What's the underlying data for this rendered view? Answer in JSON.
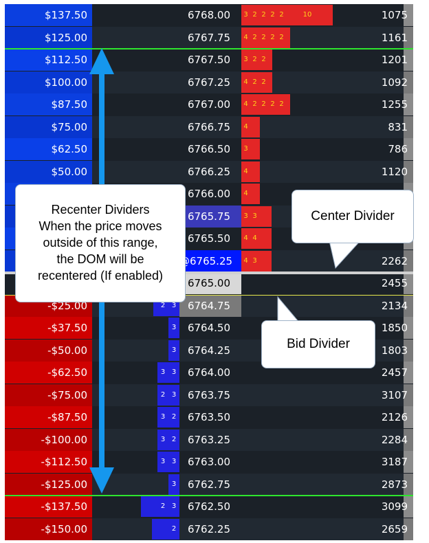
{
  "colors": {
    "pnl_profit": "#0b3fe0",
    "pnl_loss": "#d40000",
    "ask_bar": "#e32626",
    "bid_bar": "#2323e0",
    "ask_number": "#ffd21a",
    "last_price_bg": "#0018ff",
    "recenter_divider": "#2ee62e",
    "center_divider": "#d0d0d0",
    "bid_divider": "#e8e84c",
    "arrow": "#1597ee"
  },
  "rows": [
    {
      "pnl": "$137.50",
      "price": "6768.00",
      "volume": "1075",
      "ask": [
        "3",
        "2",
        "2",
        "2",
        "2",
        "10"
      ],
      "bid": []
    },
    {
      "pnl": "$125.00",
      "price": "6767.75",
      "volume": "1161",
      "ask": [
        "4",
        "2",
        "2",
        "2",
        "2"
      ],
      "bid": []
    },
    {
      "pnl": "$112.50",
      "price": "6767.50",
      "volume": "1201",
      "ask": [
        "3",
        "2",
        "2"
      ],
      "bid": []
    },
    {
      "pnl": "$100.00",
      "price": "6767.25",
      "volume": "1092",
      "ask": [
        "4",
        "2",
        "2"
      ],
      "bid": []
    },
    {
      "pnl": "$87.50",
      "price": "6767.00",
      "volume": "1255",
      "ask": [
        "4",
        "2",
        "2",
        "2",
        "2"
      ],
      "bid": []
    },
    {
      "pnl": "$75.00",
      "price": "6766.75",
      "volume": "831",
      "ask": [
        "4"
      ],
      "bid": []
    },
    {
      "pnl": "$62.50",
      "price": "6766.50",
      "volume": "786",
      "ask": [
        "3"
      ],
      "bid": []
    },
    {
      "pnl": "$50.00",
      "price": "6766.25",
      "volume": "1120",
      "ask": [
        "4"
      ],
      "bid": []
    },
    {
      "pnl": "",
      "price": "6766.00",
      "volume": "",
      "ask": [
        "4"
      ],
      "bid": []
    },
    {
      "pnl": "",
      "price": "6765.75",
      "volume": "",
      "ask": [
        "3",
        "3"
      ],
      "bid": []
    },
    {
      "pnl": "",
      "price": "6765.50",
      "volume": "",
      "ask": [
        "4",
        "4"
      ],
      "bid": []
    },
    {
      "pnl": "",
      "price": "@6765.25",
      "volume": "2262",
      "ask": [
        "4",
        "3"
      ],
      "bid": []
    },
    {
      "pnl": "",
      "price": "6765.00",
      "volume": "2455",
      "ask": [],
      "bid": []
    },
    {
      "pnl": "-$25.00",
      "price": "6764.75",
      "volume": "2134",
      "ask": [],
      "bid": [
        "2",
        "3"
      ]
    },
    {
      "pnl": "-$37.50",
      "price": "6764.50",
      "volume": "1850",
      "ask": [],
      "bid": [
        "3"
      ]
    },
    {
      "pnl": "-$50.00",
      "price": "6764.25",
      "volume": "1803",
      "ask": [],
      "bid": [
        "3"
      ]
    },
    {
      "pnl": "-$62.50",
      "price": "6764.00",
      "volume": "2457",
      "ask": [],
      "bid": [
        "3",
        "3"
      ]
    },
    {
      "pnl": "-$75.00",
      "price": "6763.75",
      "volume": "3107",
      "ask": [],
      "bid": [
        "2",
        "3"
      ]
    },
    {
      "pnl": "-$87.50",
      "price": "6763.50",
      "volume": "2126",
      "ask": [],
      "bid": [
        "3",
        "2"
      ]
    },
    {
      "pnl": "-$100.00",
      "price": "6763.25",
      "volume": "2284",
      "ask": [],
      "bid": [
        "3",
        "2"
      ]
    },
    {
      "pnl": "-$112.50",
      "price": "6763.00",
      "volume": "3187",
      "ask": [],
      "bid": [
        "3",
        "3"
      ]
    },
    {
      "pnl": "-$125.00",
      "price": "6762.75",
      "volume": "2873",
      "ask": [],
      "bid": [
        "3"
      ]
    },
    {
      "pnl": "-$137.50",
      "price": "6762.50",
      "volume": "3099",
      "ask": [],
      "bid": [
        "2",
        "3"
      ]
    },
    {
      "pnl": "-$150.00",
      "price": "6762.25",
      "volume": "2659",
      "ask": [],
      "bid": [
        "2"
      ]
    }
  ],
  "callouts": {
    "recenter": {
      "line1": "Recenter Dividers",
      "line2": "When the price moves",
      "line3": "outside of this range,",
      "line4": "the DOM will be",
      "line5": "recentered (If enabled)"
    },
    "center": {
      "label": "Center Divider"
    },
    "bid": {
      "label": "Bid Divider"
    }
  }
}
